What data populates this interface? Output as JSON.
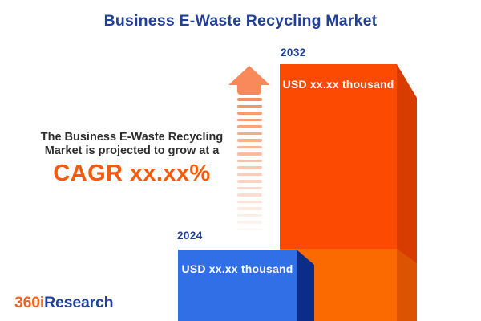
{
  "title": "Business E-Waste Recycling Market",
  "annotation": {
    "line1": "The Business E-Waste Recycling",
    "line2": "Market is projected to grow at a",
    "cagr": "CAGR xx.xx%"
  },
  "bars": [
    {
      "year": "2024",
      "value_label": "USD xx.xx thousand",
      "face_color": "#316FE7",
      "side_color": "#0B2D89"
    },
    {
      "year": "2032",
      "value_label": "USD xx.xx thousand",
      "face_color": "#FD4A02",
      "side_color": "#D83C00",
      "base_face_color": "#FA6A01",
      "base_side_color": "#DC5301"
    }
  ],
  "arrow": {
    "color": "#F9895A",
    "dash_count": 20
  },
  "logo": {
    "prefix": "360i",
    "suffix": "Research"
  },
  "colors": {
    "title_blue": "#21409A",
    "cagr_orange": "#F65A0B",
    "annotation_text": "#2D2D2D",
    "value_text": "#FFFFFF",
    "background": "#FFFFFF",
    "logo_orange": "#F26322",
    "logo_blue": "#21409A"
  },
  "chart_data": {
    "type": "bar",
    "title": "Business E-Waste Recycling Market",
    "categories": [
      "2024",
      "2032"
    ],
    "series": [
      {
        "name": "Market size",
        "values": [
          "USD xx.xx thousand",
          "USD xx.xx thousand"
        ]
      }
    ],
    "annotation": "The Business E-Waste Recycling Market is projected to grow at a CAGR xx.xx%",
    "legend": false,
    "axes_visible": false,
    "bar_colors": [
      "#316FE7",
      "#FD4A02"
    ]
  }
}
